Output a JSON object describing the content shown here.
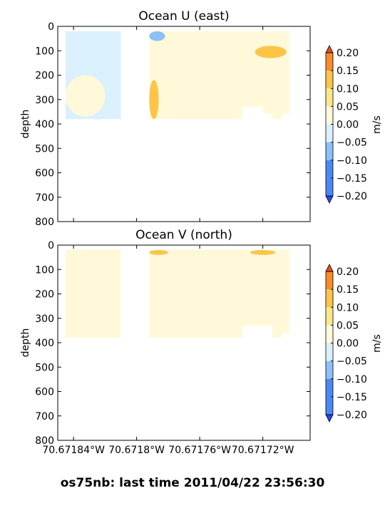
{
  "figure": {
    "footer": "os75nb: last time 2011/04/22 23:56:30"
  },
  "colors": {
    "levels": [
      "#2a45f7",
      "#4a88f7",
      "#8cc0fa",
      "#dbf0fd",
      "#fff9d9",
      "#fde78a",
      "#fcc548",
      "#fb8a2a",
      "#e84d12"
    ],
    "nodata": "#ffffff"
  },
  "chart_data": [
    {
      "type": "heatmap",
      "title": "Ocean U (east)",
      "ylabel": "depth",
      "ylim": [
        800,
        0
      ],
      "yticks": [
        "0",
        "100",
        "200",
        "300",
        "400",
        "500",
        "600",
        "700",
        "800"
      ],
      "xlim": [
        -70.67185,
        -70.67169
      ],
      "xticks": [
        {
          "value": -70.67184,
          "label": ""
        },
        {
          "value": -70.6718,
          "label": ""
        },
        {
          "value": -70.67176,
          "label": ""
        },
        {
          "value": -70.67172,
          "label": ""
        }
      ],
      "colorbar": {
        "label": "m/s",
        "ticks": [
          "0.20",
          "0.15",
          "0.10",
          "0.05",
          "0.00",
          "−0.05",
          "−0.10",
          "−0.15",
          "−0.20"
        ],
        "range": [
          -0.2,
          0.2
        ],
        "extend": "both"
      },
      "data_regions": [
        {
          "lon": [
            -70.671845,
            -70.67181
          ],
          "depth": [
            20,
            380
          ],
          "value": -0.03
        },
        {
          "lon": [
            -70.671792,
            -70.671733
          ],
          "depth": [
            20,
            380
          ],
          "value": -0.02
        },
        {
          "lon": [
            -70.671733,
            -70.671703
          ],
          "depth": [
            20,
            330
          ],
          "value": -0.02
        },
        {
          "lon": [
            -70.671703,
            -70.671714
          ],
          "depth": [
            20,
            360
          ],
          "value": -0.02
        },
        {
          "lon": [
            -70.671714,
            -70.671708
          ],
          "depth": [
            20,
            380
          ],
          "value": -0.02
        }
      ],
      "features": [
        {
          "lon": [
            -70.671845,
            -70.67182
          ],
          "depth": [
            200,
            370
          ],
          "value": 0.02
        },
        {
          "lon": [
            -70.671792,
            -70.671786
          ],
          "depth": [
            220,
            380
          ],
          "value": 0.07
        },
        {
          "lon": [
            -70.671792,
            -70.671782
          ],
          "depth": [
            20,
            60
          ],
          "value": -0.07
        },
        {
          "lon": [
            -70.671785,
            -70.671765
          ],
          "depth": [
            60,
            130
          ],
          "value": 0.02
        },
        {
          "lon": [
            -70.67177,
            -70.671745
          ],
          "depth": [
            20,
            80
          ],
          "value": 0.02
        },
        {
          "lon": [
            -70.671785,
            -70.67177
          ],
          "depth": [
            150,
            300
          ],
          "value": 0.02
        },
        {
          "lon": [
            -70.67176,
            -70.67173
          ],
          "depth": [
            160,
            260
          ],
          "value": 0.02
        },
        {
          "lon": [
            -70.671725,
            -70.671705
          ],
          "depth": [
            80,
            130
          ],
          "value": 0.07
        },
        {
          "lon": [
            -70.67172,
            -70.671712
          ],
          "depth": [
            320,
            360
          ],
          "value": 0.02
        }
      ]
    },
    {
      "type": "heatmap",
      "title": "Ocean V (north)",
      "ylabel": "depth",
      "ylim": [
        800,
        0
      ],
      "yticks": [
        "0",
        "100",
        "200",
        "300",
        "400",
        "500",
        "600",
        "700",
        "800"
      ],
      "xlim": [
        -70.67185,
        -70.67169
      ],
      "xticks": [
        {
          "value": -70.67184,
          "label": "70.67184°W"
        },
        {
          "value": -70.6718,
          "label": "70.6718°W"
        },
        {
          "value": -70.67176,
          "label": "70.67176°W"
        },
        {
          "value": -70.67172,
          "label": "70.67172°W"
        }
      ],
      "colorbar": {
        "label": "m/s",
        "ticks": [
          "0.20",
          "0.15",
          "0.10",
          "0.05",
          "0.00",
          "−0.05",
          "−0.10",
          "−0.15",
          "−0.20"
        ],
        "range": [
          -0.2,
          0.2
        ],
        "extend": "both"
      },
      "data_regions": [
        {
          "lon": [
            -70.671845,
            -70.67181
          ],
          "depth": [
            20,
            380
          ],
          "value": -0.02
        },
        {
          "lon": [
            -70.671792,
            -70.671733
          ],
          "depth": [
            20,
            380
          ],
          "value": -0.02
        },
        {
          "lon": [
            -70.671733,
            -70.671703
          ],
          "depth": [
            20,
            330
          ],
          "value": -0.02
        },
        {
          "lon": [
            -70.671703,
            -70.671714
          ],
          "depth": [
            20,
            360
          ],
          "value": -0.02
        },
        {
          "lon": [
            -70.671714,
            -70.671708
          ],
          "depth": [
            20,
            380
          ],
          "value": -0.02
        }
      ],
      "features": [
        {
          "lon": [
            -70.671845,
            -70.67183
          ],
          "depth": [
            20,
            60
          ],
          "value": 0.02
        },
        {
          "lon": [
            -70.671845,
            -70.671815
          ],
          "depth": [
            80,
            140
          ],
          "value": 0.02
        },
        {
          "lon": [
            -70.671845,
            -70.67181
          ],
          "depth": [
            280,
            380
          ],
          "value": 0.02
        },
        {
          "lon": [
            -70.671792,
            -70.67178
          ],
          "depth": [
            20,
            40
          ],
          "value": 0.07
        },
        {
          "lon": [
            -70.671792,
            -70.671776
          ],
          "depth": [
            60,
            380
          ],
          "value": 0.02
        },
        {
          "lon": [
            -70.671768,
            -70.671745
          ],
          "depth": [
            100,
            220
          ],
          "value": 0.02
        },
        {
          "lon": [
            -70.671745,
            -70.67173
          ],
          "depth": [
            250,
            340
          ],
          "value": 0.02
        },
        {
          "lon": [
            -70.671728,
            -70.671712
          ],
          "depth": [
            20,
            40
          ],
          "value": 0.07
        },
        {
          "lon": [
            -70.671735,
            -70.671712
          ],
          "depth": [
            120,
            260
          ],
          "value": 0.02
        }
      ]
    }
  ]
}
